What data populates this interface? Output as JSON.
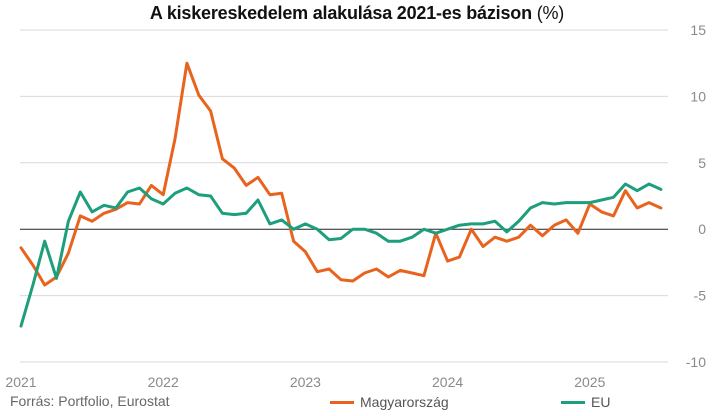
{
  "title": {
    "bold": "A kiskereskedelem alakulása 2021-es bázison",
    "unit": "(%)"
  },
  "source": "Forrás: Portfolio, Eurostat",
  "colors": {
    "hungary": "#e8631d",
    "eu": "#1d9e7c",
    "zero_line": "#222222",
    "grid": "#d9d9d9",
    "tick_text": "#8a8a8a"
  },
  "chart_data": {
    "type": "line",
    "title": "A kiskereskedelem alakulása 2021-es bázison (%)",
    "xlabel": "",
    "ylabel": "",
    "ylim": [
      -10,
      15
    ],
    "yticks": [
      -10,
      -5,
      0,
      5,
      10,
      15
    ],
    "xticks": [
      "2021",
      "2022",
      "2023",
      "2024",
      "2025"
    ],
    "x_start": "2021-01",
    "x_step": "month",
    "grid": true,
    "legend_position": "bottom",
    "series": [
      {
        "name": "Magyarország",
        "color": "#e8631d",
        "values": [
          -1.4,
          -2.7,
          -4.2,
          -3.6,
          -1.8,
          1.0,
          0.6,
          1.2,
          1.5,
          2.0,
          1.9,
          3.3,
          2.6,
          6.8,
          12.5,
          10.1,
          8.9,
          5.3,
          4.6,
          3.3,
          3.9,
          2.6,
          2.7,
          -0.9,
          -1.7,
          -3.2,
          -3.0,
          -3.8,
          -3.9,
          -3.3,
          -3.0,
          -3.6,
          -3.1,
          -3.3,
          -3.5,
          -0.3,
          -2.4,
          -2.1,
          0.0,
          -1.3,
          -0.6,
          -0.9,
          -0.6,
          0.3,
          -0.5,
          0.3,
          0.7,
          -0.3,
          1.9,
          1.3,
          1.0,
          2.9,
          1.6,
          2.0,
          1.6
        ]
      },
      {
        "name": "EU",
        "color": "#1d9e7c",
        "values": [
          -7.3,
          -4.2,
          -0.9,
          -3.7,
          0.6,
          2.8,
          1.3,
          1.8,
          1.6,
          2.8,
          3.1,
          2.3,
          1.9,
          2.7,
          3.1,
          2.6,
          2.5,
          1.2,
          1.1,
          1.2,
          2.2,
          0.4,
          0.7,
          0.0,
          0.4,
          0.0,
          -0.8,
          -0.7,
          0.0,
          0.0,
          -0.3,
          -0.9,
          -0.9,
          -0.6,
          0.0,
          -0.3,
          0.0,
          0.3,
          0.4,
          0.4,
          0.6,
          -0.2,
          0.6,
          1.6,
          2.0,
          1.9,
          2.0,
          2.0,
          2.0,
          2.2,
          2.4,
          3.4,
          2.9,
          3.4,
          3.0
        ]
      }
    ]
  }
}
